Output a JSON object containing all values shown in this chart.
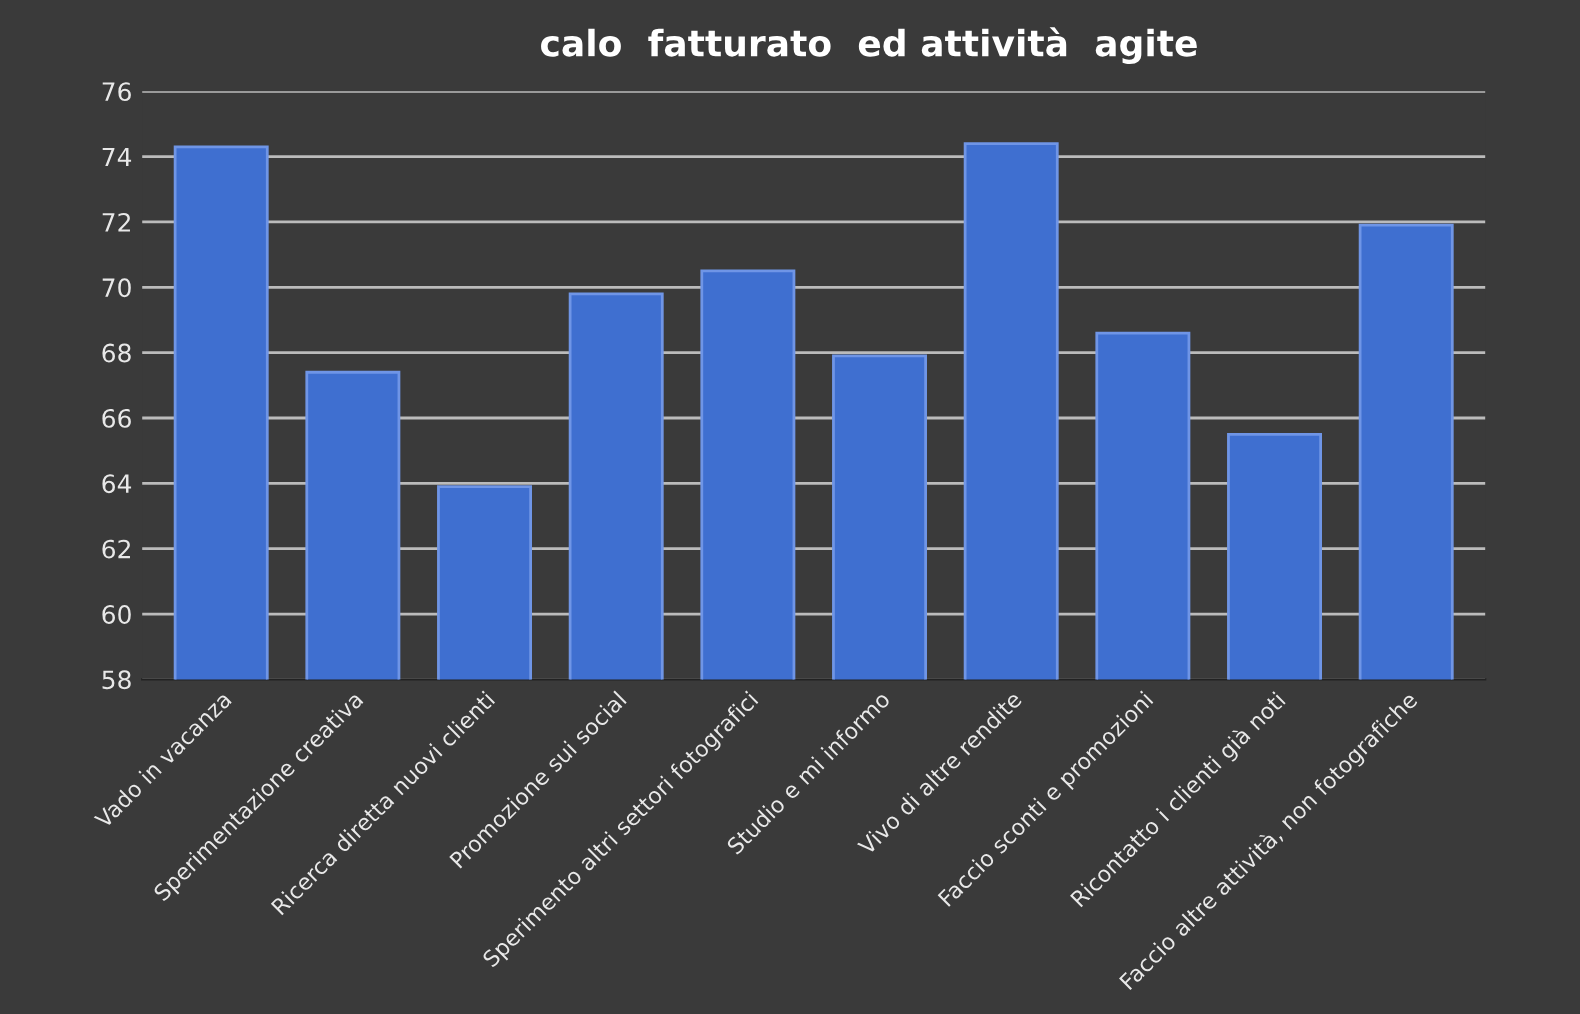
{
  "chart_data": {
    "type": "bar",
    "title": "calo  fatturato  ed attività  agite",
    "categories": [
      "Vado in vacanza",
      "Sperimentazione creativa",
      "Ricerca diretta nuovi clienti",
      "Promozione sui social",
      "Sperimento altri settori fotografici",
      "Studio e mi informo",
      "Vivo di altre rendite",
      "Faccio sconti e promozioni",
      "Ricontatto i clienti già noti",
      "Faccio altre attività, non fotografiche"
    ],
    "values": [
      74.3,
      67.4,
      63.9,
      69.8,
      70.5,
      67.9,
      74.4,
      68.6,
      65.5,
      71.9
    ],
    "color": "#3f6fd0",
    "ylim": [
      58,
      76
    ],
    "yticks": [
      58,
      60,
      62,
      64,
      66,
      68,
      70,
      72,
      74,
      76
    ],
    "grid": "y",
    "legend": false
  }
}
